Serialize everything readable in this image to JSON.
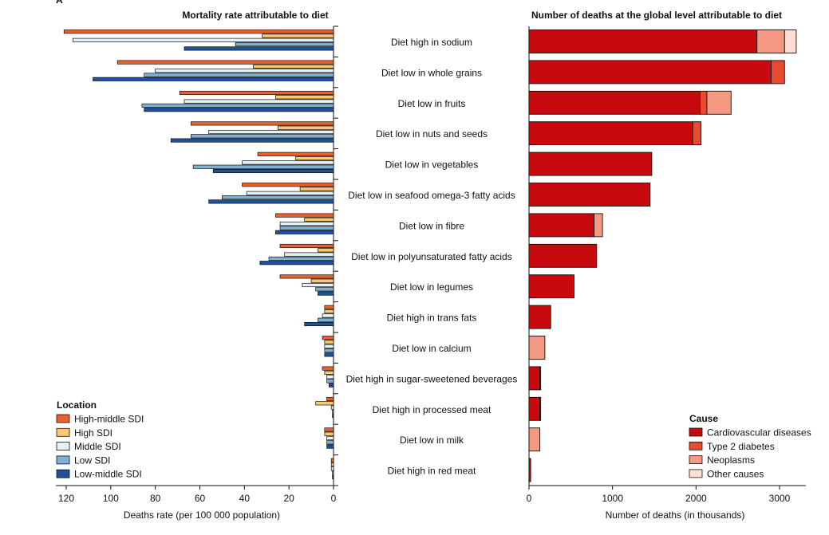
{
  "panel_letter": "A",
  "chart_data": [
    {
      "type": "bar",
      "orientation": "horizontal",
      "direction": "right-to-left",
      "title": "Mortality rate attributable to diet",
      "xlabel": "Deaths rate (per 100 000 population)",
      "xlim": [
        0,
        120
      ],
      "xticks": [
        "120",
        "100",
        "80",
        "60",
        "40",
        "20",
        "0"
      ],
      "xtick_values": [
        120,
        100,
        80,
        60,
        40,
        20,
        0
      ],
      "categories": [
        "Diet high in sodium",
        "Diet low in whole grains",
        "Diet low in fruits",
        "Diet low in nuts and seeds",
        "Diet low in vegetables",
        "Diet low in seafood omega-3 fatty acids",
        "Diet low in fibre",
        "Diet low in polyunsaturated fatty acids",
        "Diet low in legumes",
        "Diet high in trans fats",
        "Diet low in calcium",
        "Diet high in sugar-sweetened beverages",
        "Diet high in processed meat",
        "Diet low in milk",
        "Diet high in red meat"
      ],
      "legend": {
        "title": "Location",
        "position": "bottom-left"
      },
      "series": [
        {
          "name": "High-middle SDI",
          "color": "#e8622c",
          "values": [
            121,
            97,
            69,
            64,
            34,
            41,
            26,
            24,
            24,
            4,
            5,
            5,
            3,
            4,
            1
          ]
        },
        {
          "name": "High SDI",
          "color": "#f7c86e",
          "values": [
            32,
            36,
            26,
            25,
            17,
            15,
            13,
            7,
            10,
            4,
            4,
            4,
            8,
            4,
            1
          ]
        },
        {
          "name": "Middle SDI",
          "color": "#e5f1f6",
          "values": [
            117,
            80,
            67,
            56,
            41,
            39,
            24,
            22,
            14,
            5,
            4,
            3,
            1,
            3,
            1
          ]
        },
        {
          "name": "Low SDI",
          "color": "#7fb1d3",
          "values": [
            44,
            85,
            86,
            64,
            63,
            50,
            24,
            29,
            8,
            7,
            4,
            3,
            0.5,
            3,
            0.5
          ]
        },
        {
          "name": "Low-middle SDI",
          "color": "#1f4f9e",
          "values": [
            67,
            108,
            85,
            73,
            54,
            56,
            26,
            33,
            7,
            13,
            4,
            2,
            0.5,
            3,
            0.5
          ]
        }
      ]
    },
    {
      "type": "bar",
      "orientation": "horizontal",
      "stacked": true,
      "title": "Number of deaths at the global level attributable to diet",
      "xlabel": "Number of deaths (in thousands)",
      "xlim": [
        0,
        3300
      ],
      "xticks": [
        "0",
        "1000",
        "2000",
        "3000"
      ],
      "xtick_values": [
        0,
        1000,
        2000,
        3000
      ],
      "legend": {
        "title": "Cause",
        "position": "bottom-right"
      },
      "series": [
        {
          "name": "Cardiovascular diseases",
          "color": "#c8090d",
          "values": [
            2730,
            2900,
            2050,
            1960,
            1470,
            1450,
            780,
            810,
            540,
            260,
            0,
            130,
            130,
            0,
            20
          ]
        },
        {
          "name": "Type 2 diabetes",
          "color": "#e84a2e",
          "values": [
            0,
            160,
            80,
            100,
            0,
            0,
            0,
            0,
            0,
            0,
            0,
            10,
            10,
            0,
            0
          ]
        },
        {
          "name": "Neoplasms",
          "color": "#f49a82",
          "values": [
            330,
            0,
            290,
            0,
            0,
            0,
            100,
            0,
            0,
            0,
            190,
            0,
            0,
            130,
            0
          ]
        },
        {
          "name": "Other causes",
          "color": "#fde0d2",
          "values": [
            140,
            0,
            0,
            0,
            0,
            0,
            0,
            0,
            0,
            0,
            0,
            0,
            0,
            0,
            0
          ]
        }
      ]
    }
  ]
}
